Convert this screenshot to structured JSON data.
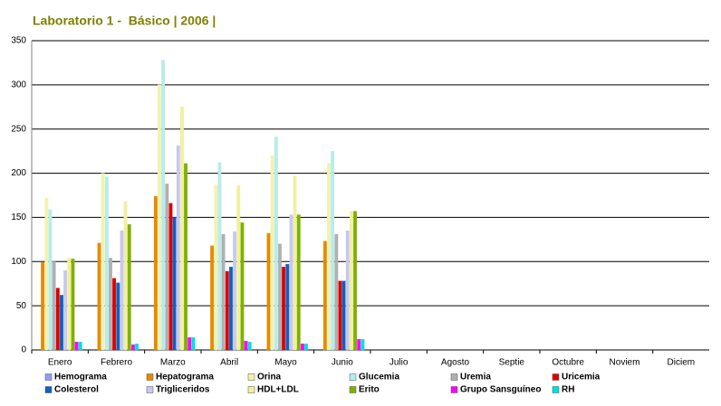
{
  "chart_data": {
    "type": "bar",
    "title": "Laboratorio 1 -  Básico | 2006 |",
    "categories": [
      "Enero",
      "Febrero",
      "Marzo",
      "Abril",
      "Mayo",
      "Junio",
      "Julio",
      "Agosto",
      "Septie",
      "Octubre",
      "Noviem",
      "Diciem"
    ],
    "series": [
      {
        "name": "Hemograma",
        "color": "#9999ff",
        "values": [
          0,
          0,
          0,
          0,
          0,
          0,
          null,
          null,
          null,
          null,
          null,
          null
        ]
      },
      {
        "name": "Hepatograma",
        "color": "#e68a00",
        "values": [
          99,
          121,
          174,
          118,
          132,
          123,
          null,
          null,
          null,
          null,
          null,
          null
        ]
      },
      {
        "name": "Orina",
        "color": "#f2f2b0",
        "values": [
          172,
          200,
          300,
          187,
          220,
          211,
          null,
          null,
          null,
          null,
          null,
          null
        ]
      },
      {
        "name": "Glucemia",
        "color": "#b8ecec",
        "values": [
          159,
          196,
          328,
          212,
          241,
          225,
          null,
          null,
          null,
          null,
          null,
          null
        ]
      },
      {
        "name": "Uremia",
        "color": "#b0b0b0",
        "values": [
          100,
          104,
          188,
          131,
          120,
          131,
          null,
          null,
          null,
          null,
          null,
          null
        ]
      },
      {
        "name": "Uricemia",
        "color": "#dd0000",
        "values": [
          70,
          81,
          166,
          89,
          94,
          78,
          null,
          null,
          null,
          null,
          null,
          null
        ]
      },
      {
        "name": "Colesterol",
        "color": "#1060c0",
        "values": [
          62,
          76,
          150,
          94,
          97,
          78,
          null,
          null,
          null,
          null,
          null,
          null
        ]
      },
      {
        "name": "Trigliceridos",
        "color": "#c8c8f0",
        "values": [
          90,
          135,
          231,
          134,
          153,
          135,
          null,
          null,
          null,
          null,
          null,
          null
        ]
      },
      {
        "name": "HDL+LDL",
        "color": "#f0f0a0",
        "values": [
          104,
          168,
          275,
          186,
          197,
          157,
          null,
          null,
          null,
          null,
          null,
          null
        ]
      },
      {
        "name": "Erito",
        "color": "#80b000",
        "values": [
          103,
          142,
          211,
          144,
          153,
          157,
          null,
          null,
          null,
          null,
          null,
          null
        ]
      },
      {
        "name": "Grupo Sansguíneo",
        "color": "#ff00ff",
        "values": [
          9,
          6,
          14,
          10,
          7,
          12,
          null,
          null,
          null,
          null,
          null,
          null
        ]
      },
      {
        "name": "RH",
        "color": "#00e0e0",
        "values": [
          9,
          7,
          14,
          9,
          7,
          12,
          null,
          null,
          null,
          null,
          null,
          null
        ]
      }
    ],
    "ylim": [
      0,
      350
    ],
    "yticks": [
      0,
      50,
      100,
      150,
      200,
      250,
      300,
      350
    ],
    "grid": true
  }
}
